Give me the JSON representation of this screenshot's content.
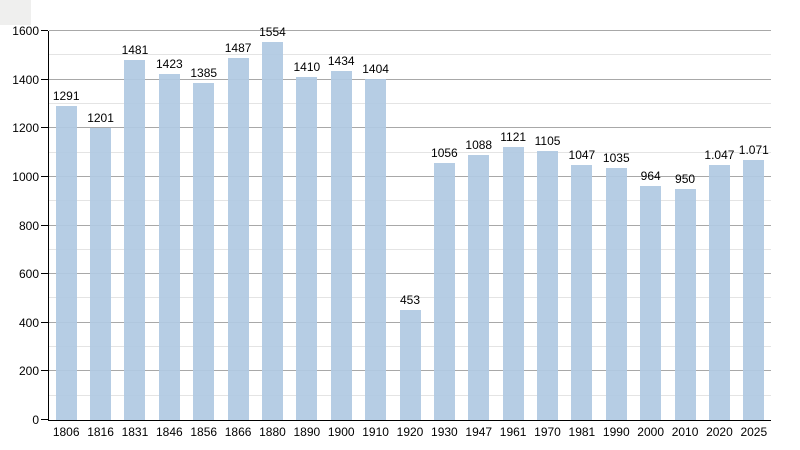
{
  "page": {
    "background_color": "#ffffff",
    "text_color": "#000000"
  },
  "chart_data": {
    "type": "bar",
    "title": "",
    "xlabel": "",
    "ylabel": "",
    "categories": [
      "1806",
      "1816",
      "1831",
      "1846",
      "1856",
      "1866",
      "1880",
      "1890",
      "1900",
      "1910",
      "1920",
      "1930",
      "1947",
      "1961",
      "1970",
      "1981",
      "1990",
      "2000",
      "2010",
      "2020",
      "2025"
    ],
    "values": [
      1291,
      1201,
      1481,
      1423,
      1385,
      1487,
      1554,
      1410,
      1434,
      1404,
      453,
      1056,
      1088,
      1121,
      1105,
      1047,
      1035,
      964,
      950,
      1047,
      1071
    ],
    "value_labels": [
      "1291",
      "1201",
      "1481",
      "1423",
      "1385",
      "1487",
      "1554",
      "1410",
      "1434",
      "1404",
      "453",
      "1056",
      "1088",
      "1121",
      "1105",
      "1047",
      "1035",
      "964",
      "950",
      "1.047",
      "1.071"
    ],
    "ylim": [
      0,
      1600
    ],
    "yticks": [
      0,
      200,
      400,
      600,
      800,
      1000,
      1200,
      1400,
      1600
    ],
    "minor_grid_step": 100,
    "major_grid_step": 200,
    "grid": "on",
    "legend": "none",
    "bar_color": "#b0c9e2",
    "major_grid_color": "#a8a8a8",
    "minor_grid_color": "#e4e4e4",
    "axis_color": "#000000"
  }
}
